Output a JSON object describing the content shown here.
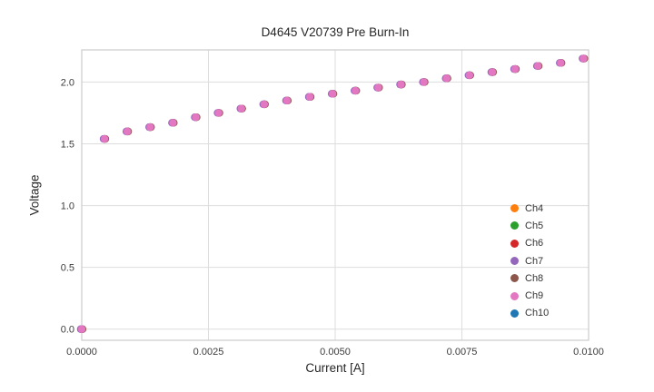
{
  "chart_data": {
    "type": "scatter",
    "title": "D4645 V20739 Pre Burn-In",
    "xlabel": "Current [A]",
    "ylabel": "Voltage",
    "xlim": [
      0.0,
      0.01
    ],
    "ylim": [
      -0.09,
      2.26
    ],
    "xticks": [
      0.0,
      0.0025,
      0.005,
      0.0075,
      0.01
    ],
    "xtick_labels": [
      "0.0000",
      "0.0025",
      "0.0050",
      "0.0075",
      "0.0100"
    ],
    "yticks": [
      0.0,
      0.5,
      1.0,
      1.5,
      2.0
    ],
    "ytick_labels": [
      "0.0",
      "0.5",
      "1.0",
      "1.5",
      "2.0"
    ],
    "grid": true,
    "legend_position": "lower right",
    "x": [
      0.0,
      0.00045,
      0.0009,
      0.00135,
      0.0018,
      0.00225,
      0.0027,
      0.00315,
      0.0036,
      0.00405,
      0.0045,
      0.00495,
      0.0054,
      0.00585,
      0.0063,
      0.00675,
      0.0072,
      0.00765,
      0.0081,
      0.00855,
      0.009,
      0.00945,
      0.0099
    ],
    "y": [
      0.0,
      1.54,
      1.6,
      1.635,
      1.67,
      1.715,
      1.75,
      1.785,
      1.82,
      1.85,
      1.88,
      1.905,
      1.93,
      1.955,
      1.98,
      2.0,
      2.03,
      2.055,
      2.08,
      2.105,
      2.13,
      2.155,
      2.19
    ],
    "series": [
      {
        "name": "Ch4",
        "color": "#ff7f0e"
      },
      {
        "name": "Ch5",
        "color": "#2ca02c"
      },
      {
        "name": "Ch6",
        "color": "#d62728"
      },
      {
        "name": "Ch7",
        "color": "#9467bd"
      },
      {
        "name": "Ch8",
        "color": "#8c564b"
      },
      {
        "name": "Ch9",
        "color": "#e377c2"
      },
      {
        "name": "Ch10",
        "color": "#1f77b4"
      }
    ]
  }
}
